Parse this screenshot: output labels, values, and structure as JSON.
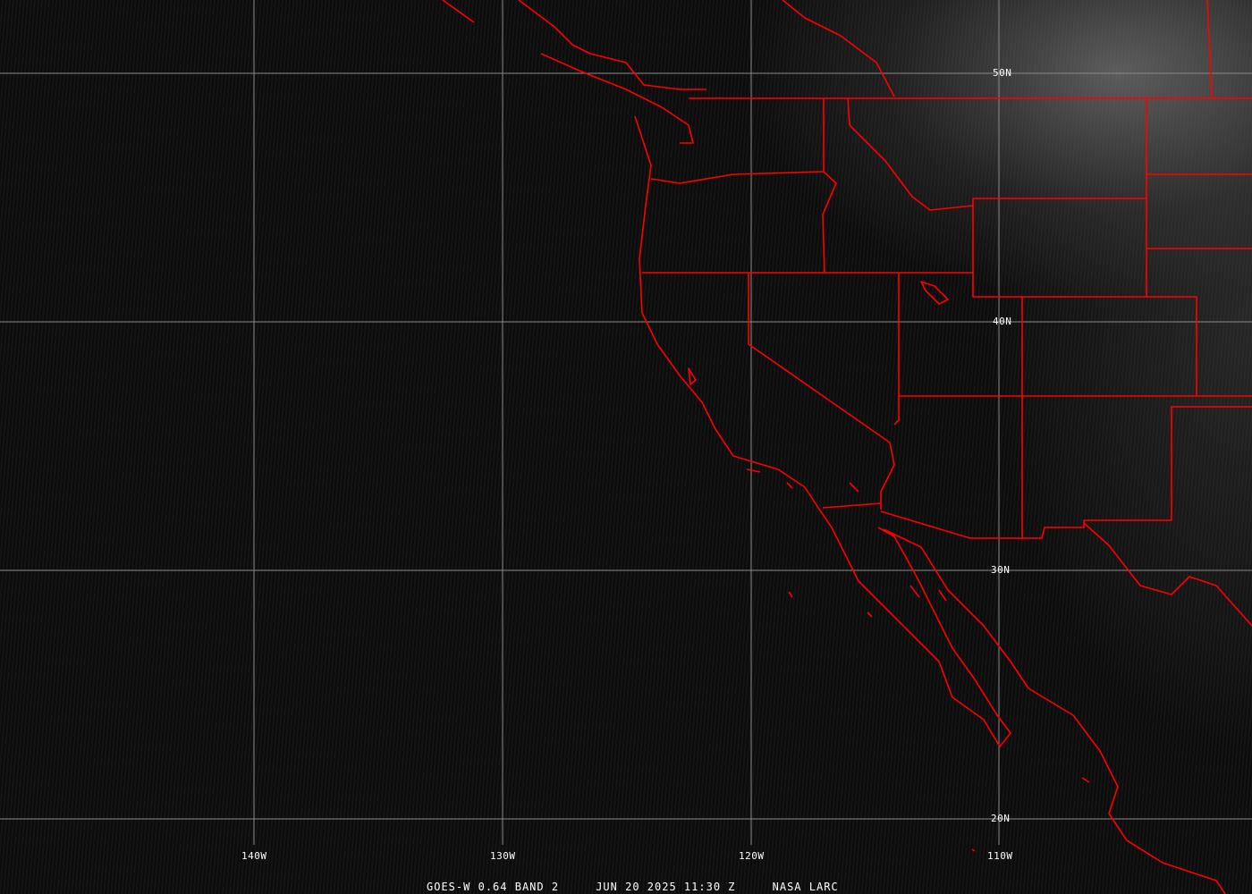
{
  "map": {
    "satellite": "GOES-W",
    "channel": "0.64 BAND 2",
    "date": "JUN 20 2025",
    "time": "11:30 Z",
    "source": "NASA LARC",
    "boundary_color": "#ff0000",
    "grid_color": "#9a9a9a",
    "longitude_labels": [
      "140W",
      "130W",
      "120W",
      "110W"
    ],
    "latitude_labels": [
      "50N",
      "40N",
      "30N",
      "20N"
    ]
  }
}
